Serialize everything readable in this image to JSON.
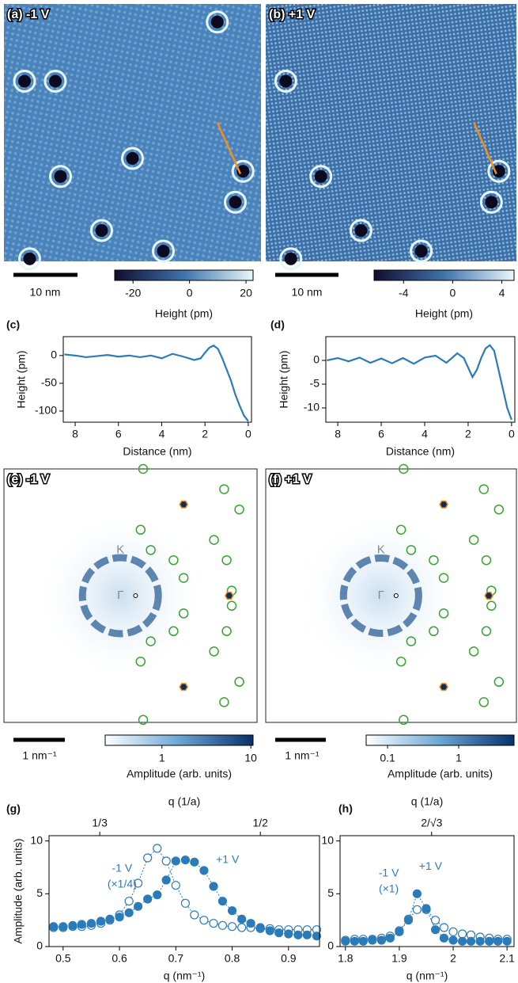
{
  "chart_data": [
    {
      "type": "image",
      "label": "(a) -1 V",
      "scale_bar": "10 nm",
      "colorbar_label": "Height (pm)",
      "xlim": [
        -26.5,
        22.5
      ],
      "xticks": [
        -20,
        0,
        20
      ],
      "colors": [
        "#120c2e",
        "#3e73ac",
        "#eaf7fa"
      ],
      "style": "topography"
    },
    {
      "type": "image",
      "label": "(b) +1 V",
      "scale_bar": "10 nm",
      "colorbar_label": "Height (pm)",
      "xlim": [
        -6.4,
        5
      ],
      "xticks": [
        -4,
        0,
        4
      ],
      "colors": [
        "#120c2e",
        "#3e73ac",
        "#eaf7fa"
      ],
      "style": "topography"
    },
    {
      "type": "line",
      "panel": "(c)",
      "xlabel": "Distance (nm)",
      "ylabel": "Height (pm)",
      "xlim": [
        8.55,
        -0.15
      ],
      "xticks": [
        8,
        6,
        4,
        2,
        0
      ],
      "ylim": [
        -120,
        34
      ],
      "yticks": [
        0,
        -50,
        -100
      ],
      "color": "#2b7bb9",
      "x": [
        8.5,
        8,
        7.5,
        7,
        6.5,
        6,
        5.5,
        5,
        4.5,
        4,
        3.5,
        3,
        2.5,
        2.2,
        2,
        1.8,
        1.6,
        1.4,
        1.2,
        1,
        0.8,
        0.6,
        0.4,
        0.2,
        0
      ],
      "values": [
        2,
        0,
        -3,
        -1,
        1,
        -2,
        0,
        -3,
        0,
        -5,
        3,
        -2,
        -8,
        -5,
        5,
        14,
        18,
        12,
        -5,
        -25,
        -45,
        -70,
        -90,
        -108,
        -118
      ]
    },
    {
      "type": "line",
      "panel": "(d)",
      "xlabel": "Distance (nm)",
      "ylabel": "Height (pm)",
      "xlim": [
        8.55,
        -0.15
      ],
      "xticks": [
        8,
        6,
        4,
        2,
        0
      ],
      "ylim": [
        -13,
        5
      ],
      "yticks": [
        0,
        -5,
        -10
      ],
      "color": "#2b7bb9",
      "x": [
        8.5,
        8,
        7.5,
        7,
        6.5,
        6,
        5.5,
        5,
        4.5,
        4,
        3.5,
        3,
        2.5,
        2.2,
        2,
        1.8,
        1.6,
        1.4,
        1.2,
        1,
        0.8,
        0.6,
        0.4,
        0.2,
        0
      ],
      "values": [
        0,
        0.5,
        -0.2,
        0.6,
        -0.5,
        0.4,
        -0.6,
        0.5,
        -0.7,
        0.6,
        1,
        -0.5,
        1.5,
        0.5,
        -1.5,
        -3.5,
        -2,
        0.5,
        2.5,
        3.2,
        2,
        -2,
        -6,
        -10,
        -12.5
      ]
    },
    {
      "type": "image",
      "label": "(e) -1 V",
      "scale_bar": "1 nm⁻¹",
      "colorbar_label": "Amplitude (arb. units)",
      "xlim": [
        0.23,
        10.6
      ],
      "xticks": [
        1,
        10
      ],
      "log": true,
      "colors": [
        "#ffffff",
        "#6aa6d4",
        "#08306b"
      ],
      "style": "fft",
      "annotations": [
        "K",
        "Γ"
      ]
    },
    {
      "type": "image",
      "label": "(f) +1 V",
      "scale_bar": "1 nm⁻¹",
      "colorbar_label": "Amplitude (arb. units)",
      "xlim": [
        0.05,
        6
      ],
      "xticks": [
        0.1,
        1
      ],
      "log": true,
      "colors": [
        "#ffffff",
        "#6aa6d4",
        "#08306b"
      ],
      "style": "fft",
      "annotations": [
        "K",
        "Γ"
      ]
    },
    {
      "type": "scatter",
      "panel": "(g)",
      "xlabel": "q (nm⁻¹)",
      "ylabel": "Amplitude (arb. units)",
      "x2label": "q (1/a)",
      "xlim": [
        0.475,
        0.955
      ],
      "xticks": [
        0.5,
        0.6,
        0.7,
        0.8,
        0.9
      ],
      "x2ticks": [
        {
          "value": 0.565,
          "label": "1/3"
        },
        {
          "value": 0.85,
          "label": "1/2"
        }
      ],
      "ylim": [
        0,
        10.5
      ],
      "yticks": [
        0,
        5,
        10
      ],
      "x": [
        0.483,
        0.5,
        0.517,
        0.533,
        0.55,
        0.567,
        0.583,
        0.6,
        0.617,
        0.633,
        0.65,
        0.667,
        0.683,
        0.7,
        0.717,
        0.733,
        0.75,
        0.767,
        0.783,
        0.8,
        0.817,
        0.833,
        0.85,
        0.867,
        0.883,
        0.9,
        0.917,
        0.933,
        0.95
      ],
      "series": [
        {
          "name": "-1 V",
          "note": "(×1/4)",
          "color": "#2b7bb9",
          "marker": "open",
          "values": [
            1.8,
            1.8,
            1.9,
            1.9,
            2.0,
            2.2,
            2.5,
            3.0,
            4.3,
            6.0,
            8.4,
            9.3,
            8.1,
            5.8,
            4.1,
            3.0,
            2.5,
            2.2,
            2.0,
            1.9,
            1.8,
            1.8,
            1.7,
            1.7,
            1.6,
            1.6,
            1.6,
            1.6,
            1.6
          ]
        },
        {
          "name": "+1 V",
          "color": "#2b7bb9",
          "marker": "filled",
          "values": [
            1.9,
            1.9,
            2.0,
            2.1,
            2.2,
            2.4,
            2.6,
            2.8,
            3.2,
            3.8,
            4.5,
            4.9,
            6.3,
            8.1,
            8.2,
            8.0,
            7.2,
            5.7,
            4.3,
            3.4,
            2.6,
            2.2,
            1.8,
            1.5,
            1.3,
            1.2,
            1.1,
            1.1,
            1.0
          ]
        }
      ]
    },
    {
      "type": "scatter",
      "panel": "(h)",
      "xlabel": "q (nm⁻¹)",
      "x2label": "q (1/a)",
      "xlim": [
        1.79,
        2.113
      ],
      "xticks": [
        1.8,
        1.9,
        2.0,
        2.1
      ],
      "x2ticks": [
        {
          "value": 1.96,
          "label": "2/√3"
        }
      ],
      "ylim": [
        0,
        10.5
      ],
      "yticks": [
        0,
        5,
        10
      ],
      "x": [
        1.8,
        1.817,
        1.833,
        1.85,
        1.867,
        1.883,
        1.9,
        1.917,
        1.933,
        1.95,
        1.967,
        1.983,
        2.0,
        2.017,
        2.033,
        2.05,
        2.067,
        2.083,
        2.1
      ],
      "series": [
        {
          "name": "-1 V",
          "note": "(×1)",
          "color": "#2b7bb9",
          "marker": "open",
          "values": [
            0.6,
            0.7,
            0.7,
            0.7,
            0.8,
            1.0,
            1.5,
            2.6,
            3.5,
            3.5,
            2.5,
            1.8,
            1.4,
            1.2,
            1.1,
            0.9,
            0.8,
            0.7,
            0.7
          ]
        },
        {
          "name": "+1 V",
          "color": "#2b7bb9",
          "marker": "filled",
          "values": [
            0.5,
            0.5,
            0.5,
            0.6,
            0.6,
            0.8,
            1.4,
            2.5,
            5.0,
            3.6,
            1.6,
            0.8,
            0.6,
            0.5,
            0.5,
            0.5,
            0.5,
            0.5,
            0.5
          ]
        }
      ]
    }
  ]
}
